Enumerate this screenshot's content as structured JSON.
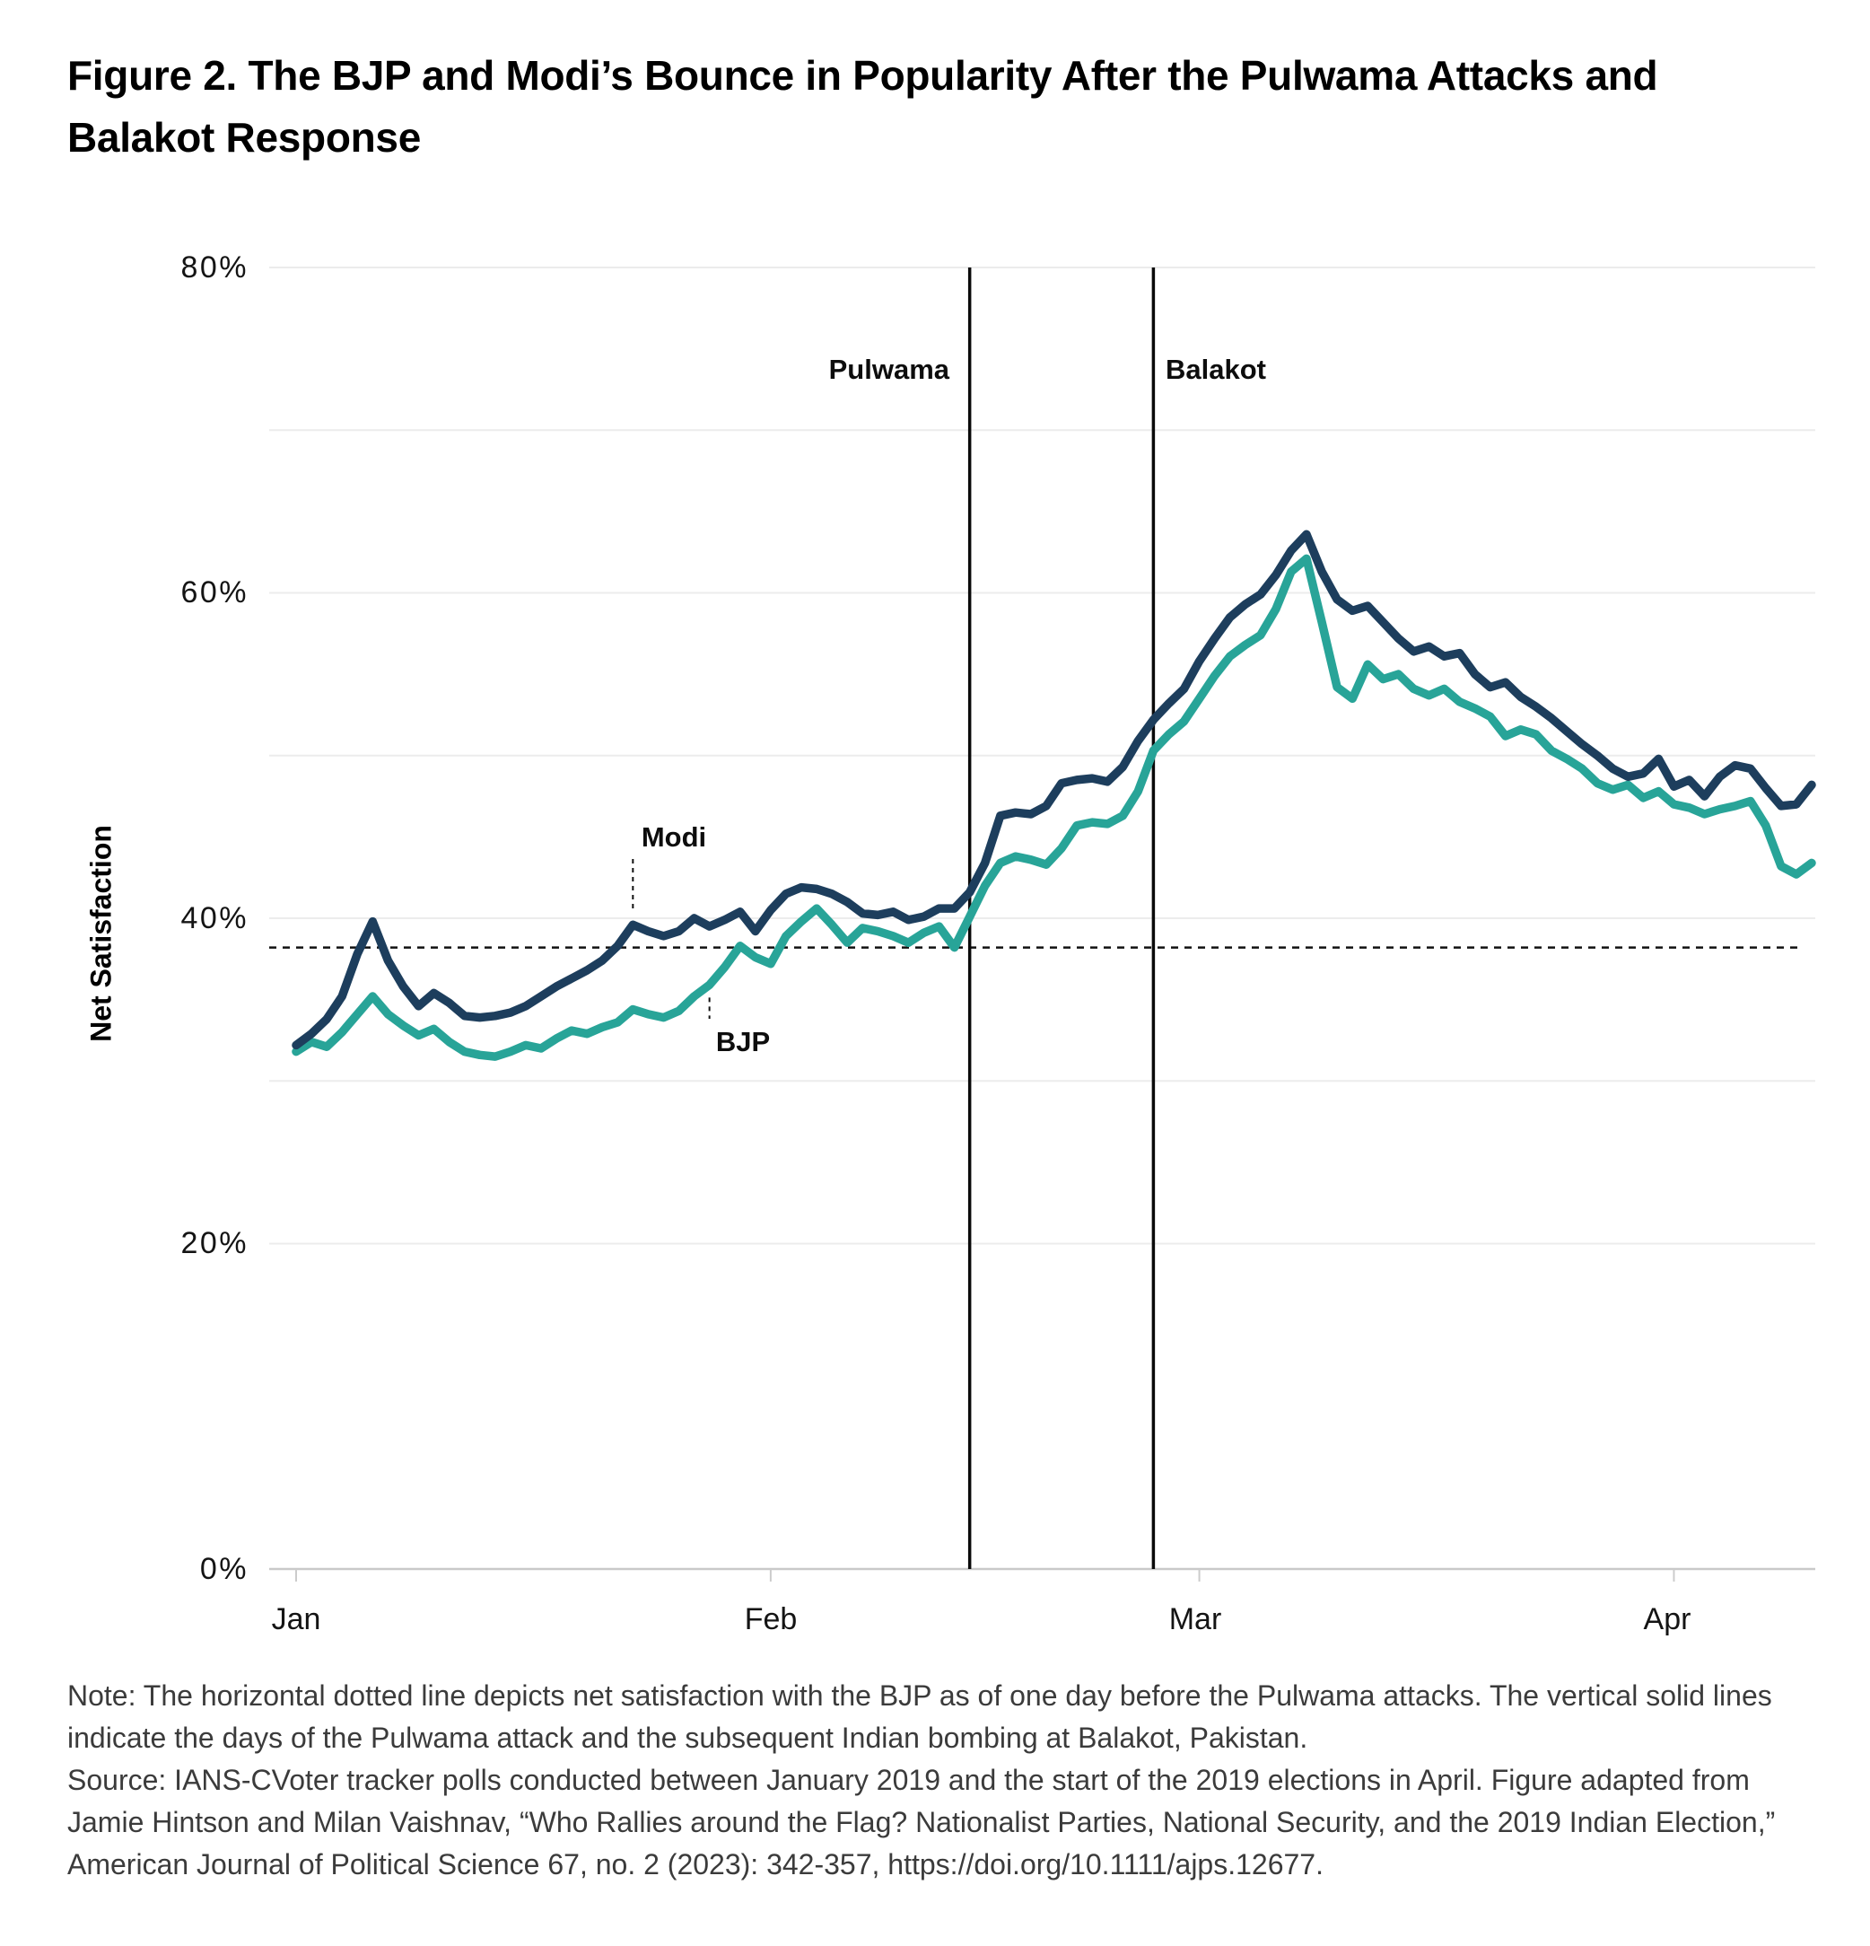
{
  "title": "Figure 2. The BJP and Modi’s Bounce in Popularity After the Pulwama Attacks and Balakot Response",
  "note": {
    "line1": "Note: The horizontal dotted line depicts net satisfaction with the BJP as of one day before the Pulwama attacks. The vertical solid lines indicate the days of the Pulwama attack and the subsequent Indian bombing at Balakot, Pakistan.",
    "line2": "Source: IANS-CVoter tracker polls conducted between January 2019 and the start of the 2019 elections in April. Figure adapted from Jamie Hintson and Milan Vaishnav, “Who Rallies around the Flag? Nationalist Parties, National Security, and the 2019 Indian Election,” American Journal of Political Science 67, no. 2 (2023): 342-357, https://doi.org/10.1111/ajps.12677."
  },
  "colors": {
    "background": "#ffffff",
    "grid": "#ececec",
    "axis": "#c9c9c9",
    "tick": "#cccccc",
    "event_line": "#0a0a0a",
    "baseline": "#111111",
    "title_text": "#000000",
    "note_text": "#3b3b3b",
    "modi_navy": "#1d3e5d",
    "bjp_teal": "#28a498"
  },
  "chart_data": {
    "type": "line",
    "title": "Figure 2. The BJP and Modi’s Bounce in Popularity After the Pulwama Attacks and Balakot Response",
    "xlabel": "",
    "ylabel": "Net Satisfaction",
    "ylim": [
      0,
      80
    ],
    "grid": "horizontal",
    "grid_values": [
      80,
      70,
      60,
      50,
      40,
      30,
      20
    ],
    "x_start_date": "2019-01-01",
    "x_step_days": 1,
    "yticks": [
      {
        "label": "80%",
        "value": 80
      },
      {
        "label": "60%",
        "value": 60
      },
      {
        "label": "40%",
        "value": 40
      },
      {
        "label": "20%",
        "value": 20
      },
      {
        "label": "0%",
        "value": 0
      }
    ],
    "xticks": [
      {
        "label": "Jan",
        "day_offset": 0
      },
      {
        "label": "Feb",
        "day_offset": 31
      },
      {
        "label": "Mar",
        "day_offset": 59
      },
      {
        "label": "Apr",
        "day_offset": 90
      }
    ],
    "events": [
      {
        "label": "Pulwama",
        "date": "2019-02-14",
        "day_offset": 44
      },
      {
        "label": "Balakot",
        "date": "2019-02-26",
        "day_offset": 56
      }
    ],
    "baseline": {
      "value": 38.2,
      "style": "dotted",
      "meaning": "Net satisfaction with the BJP one day before the Pulwama attacks"
    },
    "annotations": [
      {
        "text": "Modi",
        "series": 0,
        "day_offset": 22,
        "side": "above"
      },
      {
        "text": "BJP",
        "series": 1,
        "day_offset": 27,
        "side": "below"
      }
    ],
    "series": [
      {
        "name": "Modi",
        "color": "#1d3e5d",
        "values": [
          32.2,
          32.9,
          33.8,
          35.2,
          37.8,
          39.8,
          37.4,
          35.8,
          34.6,
          35.4,
          34.8,
          34.0,
          33.9,
          34.0,
          34.2,
          34.6,
          35.2,
          35.8,
          36.3,
          36.8,
          37.4,
          38.3,
          39.6,
          39.2,
          38.9,
          39.2,
          40.0,
          39.5,
          39.9,
          40.4,
          39.2,
          40.5,
          41.5,
          41.9,
          41.8,
          41.5,
          41.0,
          40.3,
          40.2,
          40.4,
          39.9,
          40.1,
          40.6,
          40.6,
          41.6,
          43.4,
          46.3,
          46.5,
          46.4,
          46.9,
          48.3,
          48.5,
          48.6,
          48.4,
          49.3,
          50.9,
          52.2,
          53.2,
          54.1,
          55.8,
          57.2,
          58.5,
          59.3,
          59.9,
          61.1,
          62.6,
          63.6,
          61.3,
          59.6,
          58.9,
          59.2,
          58.2,
          57.2,
          56.4,
          56.7,
          56.1,
          56.3,
          55.0,
          54.2,
          54.5,
          53.6,
          53.0,
          52.3,
          51.5,
          50.7,
          50.0,
          49.2,
          48.7,
          48.9,
          49.8,
          48.1,
          48.5,
          47.5,
          48.7,
          49.4,
          49.2,
          48.0,
          46.9,
          47.0,
          48.2
        ]
      },
      {
        "name": "BJP",
        "color": "#28a498",
        "values": [
          31.8,
          32.4,
          32.1,
          33.0,
          34.1,
          35.2,
          34.1,
          33.4,
          32.8,
          33.2,
          32.4,
          31.8,
          31.6,
          31.5,
          31.8,
          32.2,
          32.0,
          32.6,
          33.1,
          32.9,
          33.3,
          33.6,
          34.4,
          34.1,
          33.9,
          34.3,
          35.2,
          35.9,
          37.0,
          38.3,
          37.6,
          37.2,
          38.9,
          39.8,
          40.6,
          39.6,
          38.5,
          39.4,
          39.2,
          38.9,
          38.5,
          39.1,
          39.5,
          38.2,
          40.1,
          42.0,
          43.4,
          43.8,
          43.6,
          43.3,
          44.3,
          45.7,
          45.9,
          45.8,
          46.3,
          47.8,
          50.3,
          51.3,
          52.1,
          53.5,
          54.9,
          56.1,
          56.8,
          57.4,
          59.0,
          61.3,
          62.1,
          58.2,
          54.2,
          53.5,
          55.6,
          54.7,
          55.0,
          54.1,
          53.7,
          54.1,
          53.3,
          52.9,
          52.4,
          51.2,
          51.6,
          51.3,
          50.3,
          49.8,
          49.2,
          48.3,
          47.9,
          48.2,
          47.4,
          47.8,
          47.0,
          46.8,
          46.4,
          46.7,
          46.9,
          47.2,
          45.7,
          43.2,
          42.7,
          43.4
        ]
      }
    ]
  }
}
